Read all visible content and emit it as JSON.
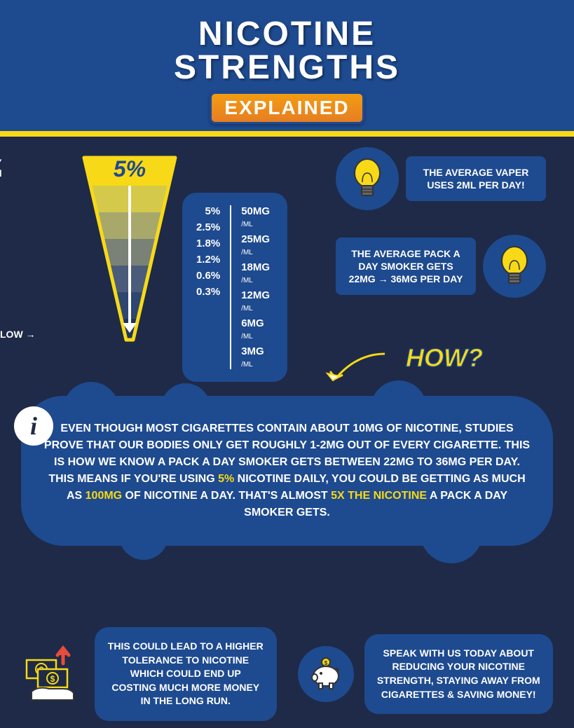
{
  "header": {
    "line1": "NICOTINE",
    "line2": "STRENGTHS",
    "badge": "EXPLAINED"
  },
  "gauge": {
    "very_high": "VERY\nHIGH",
    "low": "LOW",
    "top_pct": "5%",
    "colors": [
      "#f7d917",
      "#d4c94a",
      "#a8a86b",
      "#7a8177",
      "#4a5c7a",
      "#2e4670",
      "#1e3560"
    ]
  },
  "conversion": {
    "rows": [
      {
        "pct": "5%",
        "mg": "50MG"
      },
      {
        "pct": "2.5%",
        "mg": "25MG"
      },
      {
        "pct": "1.8%",
        "mg": "18MG"
      },
      {
        "pct": "1.2%",
        "mg": "12MG"
      },
      {
        "pct": "0.6%",
        "mg": "6MG"
      },
      {
        "pct": "0.3%",
        "mg": "3MG"
      }
    ],
    "unit": "/ML"
  },
  "fact1": "THE AVERAGE VAPER USES 2ML PER DAY!",
  "fact2": "THE AVERAGE PACK A DAY SMOKER GETS 22MG → 36MG PER DAY",
  "how": "HOW?",
  "cloud": {
    "t1": "EVEN THOUGH MOST CIGARETTES CONTAIN ABOUT 10MG OF NICOTINE, STUDIES PROVE THAT OUR BODIES ONLY GET ROUGHLY 1-2MG OUT OF EVERY CIGARETTE. THIS IS HOW WE KNOW A PACK A DAY SMOKER GETS BETWEEN 22MG TO 36MG PER DAY.  THIS MEANS IF YOU'RE USING ",
    "h1": "5%",
    "t2": " NICOTINE DAILY, YOU COULD BE GETTING AS MUCH AS ",
    "h2": "100MG",
    "t3": " OF NICOTINE A DAY. THAT'S ALMOST ",
    "h3": "5X THE NICOTINE",
    "t4": " A PACK A DAY SMOKER GETS."
  },
  "bottom1": "THIS COULD LEAD TO A HIGHER  TOLERANCE TO NICOTINE WHICH COULD END UP COSTING  MUCH MORE MONEY IN THE LONG RUN.",
  "bottom2": "SPEAK WITH US TODAY ABOUT REDUCING YOUR NICOTINE STRENGTH, STAYING AWAY FROM CIGARETTES & SAVING MONEY!",
  "colors": {
    "bg": "#1e2a47",
    "panel": "#1e4a8f",
    "yellow": "#f7d917",
    "orange": "#e67e22"
  }
}
